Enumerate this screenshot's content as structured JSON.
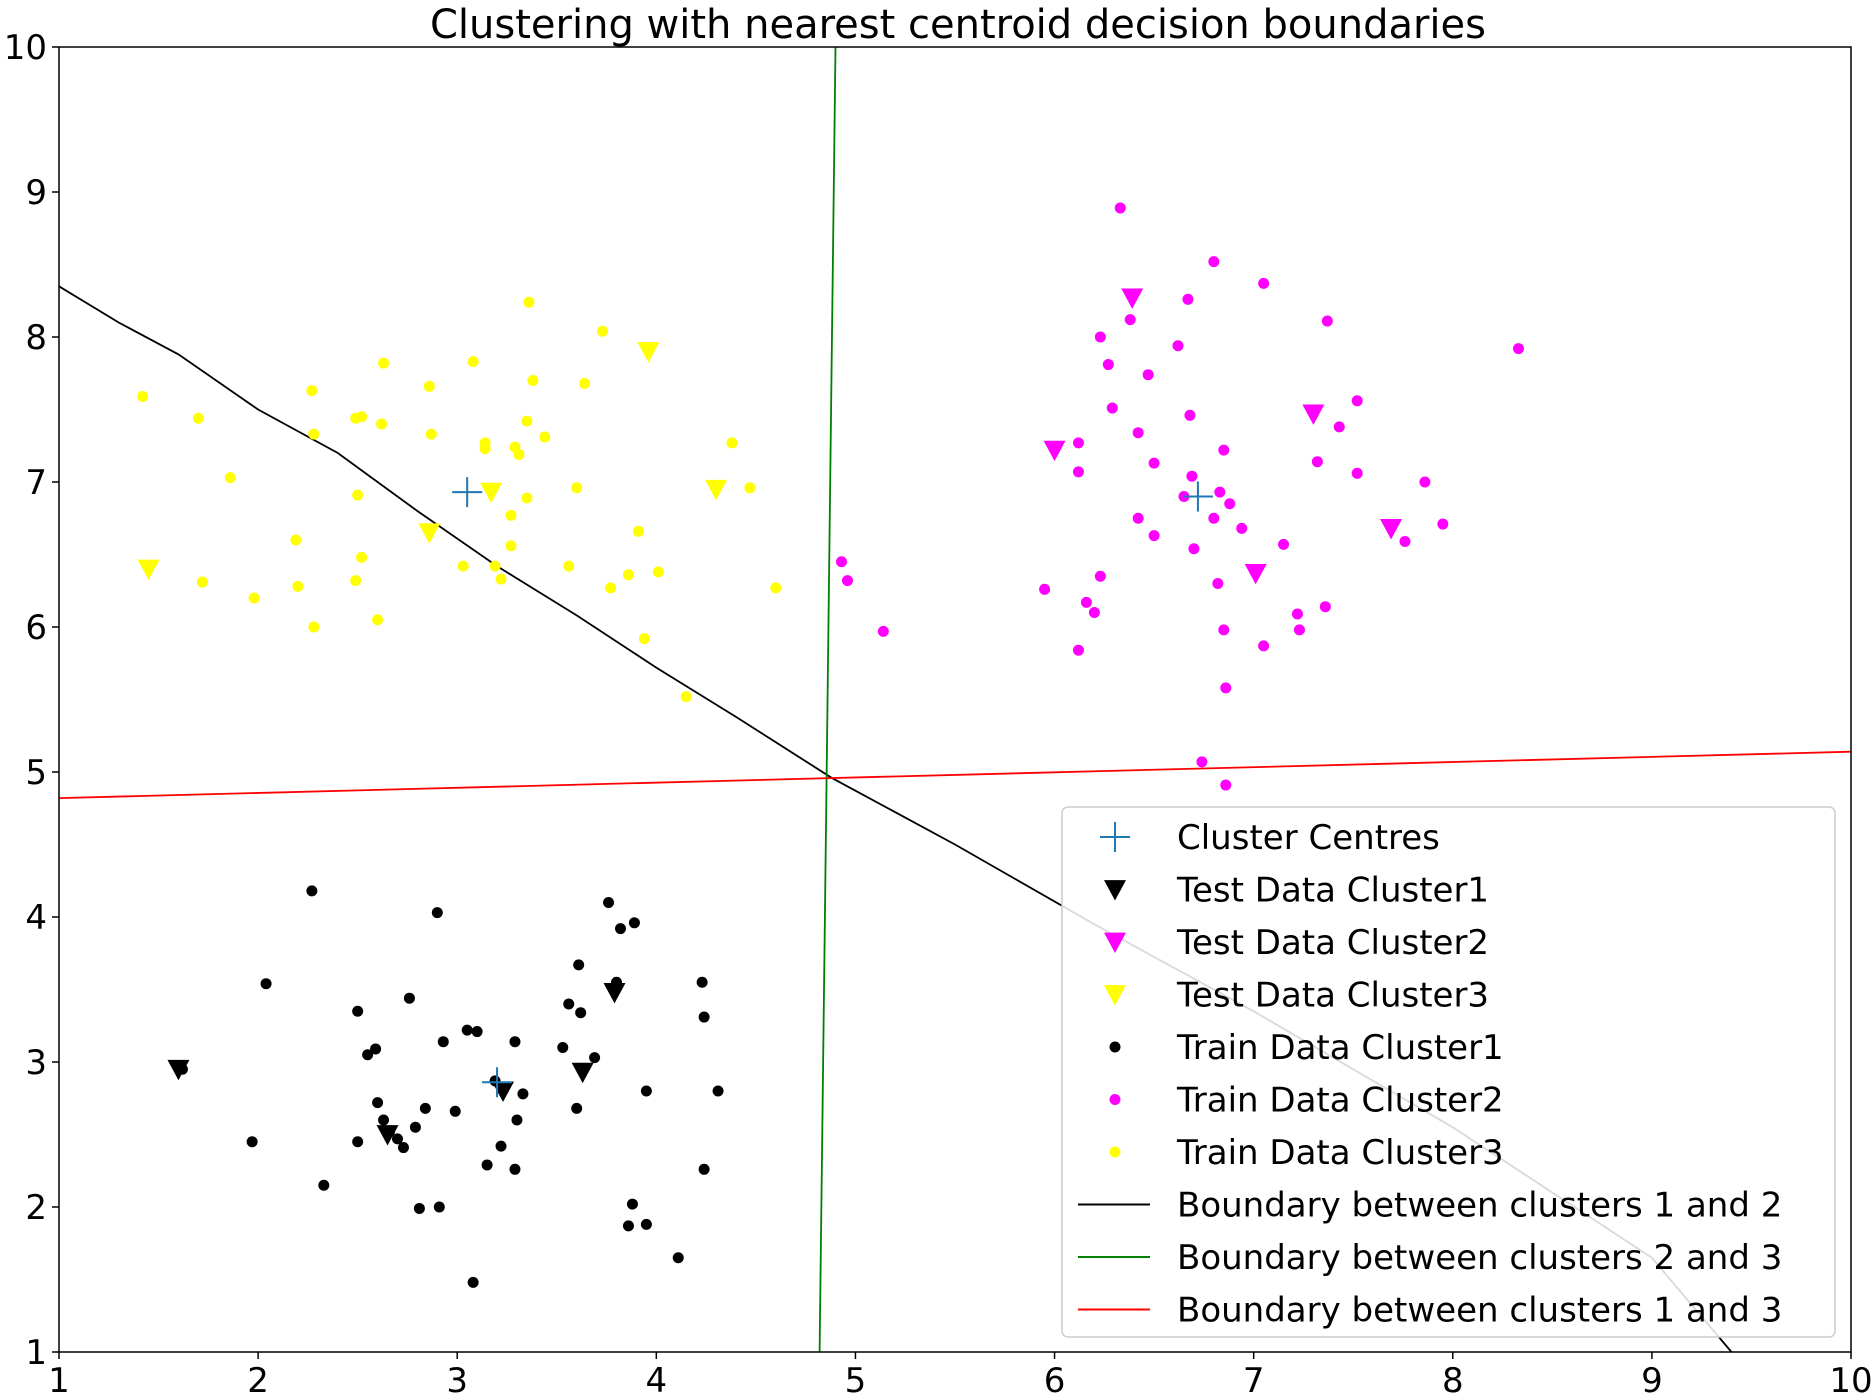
{
  "chart_data": {
    "type": "scatter",
    "title": "Clustering with nearest centroid decision boundaries",
    "xlabel": "",
    "ylabel": "",
    "xlim": [
      1,
      10
    ],
    "ylim": [
      1,
      10
    ],
    "xticks": [
      "1",
      "2",
      "3",
      "4",
      "5",
      "6",
      "7",
      "8",
      "9",
      "10"
    ],
    "yticks": [
      "1",
      "2",
      "3",
      "4",
      "5",
      "6",
      "7",
      "8",
      "9",
      "10"
    ],
    "grid": false,
    "legend_position": "bottom-right",
    "series": [
      {
        "name": "Cluster Centres",
        "kind": "plus",
        "color": "#1f77b4",
        "points": [
          [
            3.05,
            6.93
          ],
          [
            6.72,
            6.9
          ],
          [
            3.2,
            2.86
          ]
        ]
      },
      {
        "name": "Test Data Cluster1",
        "kind": "triangle",
        "color": "#000000",
        "points": [
          [
            1.6,
            2.95
          ],
          [
            2.65,
            2.5
          ],
          [
            3.23,
            2.8
          ],
          [
            3.63,
            2.93
          ],
          [
            3.79,
            3.48
          ]
        ]
      },
      {
        "name": "Test Data Cluster2",
        "kind": "triangle",
        "color": "#ff00ff",
        "points": [
          [
            6.39,
            8.27
          ],
          [
            6.0,
            7.22
          ],
          [
            7.3,
            7.47
          ],
          [
            7.01,
            6.37
          ],
          [
            7.69,
            6.68
          ]
        ]
      },
      {
        "name": "Test Data Cluster3",
        "kind": "triangle",
        "color": "#ffff00",
        "points": [
          [
            1.45,
            6.4
          ],
          [
            2.86,
            6.65
          ],
          [
            3.17,
            6.93
          ],
          [
            3.96,
            7.9
          ],
          [
            4.3,
            6.95
          ]
        ]
      },
      {
        "name": "Train Data Cluster1",
        "kind": "dot",
        "color": "#000000",
        "points": [
          [
            1.62,
            2.95
          ],
          [
            1.97,
            2.45
          ],
          [
            2.04,
            3.54
          ],
          [
            2.27,
            4.18
          ],
          [
            2.33,
            2.15
          ],
          [
            2.5,
            3.35
          ],
          [
            2.5,
            2.45
          ],
          [
            2.55,
            3.05
          ],
          [
            2.59,
            3.09
          ],
          [
            2.6,
            2.72
          ],
          [
            2.63,
            2.6
          ],
          [
            2.66,
            2.52
          ],
          [
            2.7,
            2.47
          ],
          [
            2.73,
            2.41
          ],
          [
            2.76,
            3.44
          ],
          [
            2.79,
            2.55
          ],
          [
            2.81,
            1.99
          ],
          [
            2.84,
            2.68
          ],
          [
            2.9,
            4.03
          ],
          [
            2.91,
            2.0
          ],
          [
            2.93,
            3.14
          ],
          [
            2.99,
            2.66
          ],
          [
            3.05,
            3.22
          ],
          [
            3.08,
            1.48
          ],
          [
            3.1,
            3.21
          ],
          [
            3.15,
            2.29
          ],
          [
            3.19,
            2.87
          ],
          [
            3.22,
            2.42
          ],
          [
            3.29,
            3.14
          ],
          [
            3.29,
            2.26
          ],
          [
            3.3,
            2.6
          ],
          [
            3.33,
            2.78
          ],
          [
            3.53,
            3.1
          ],
          [
            3.56,
            3.4
          ],
          [
            3.61,
            3.67
          ],
          [
            3.62,
            3.34
          ],
          [
            3.6,
            2.68
          ],
          [
            3.69,
            3.03
          ],
          [
            3.76,
            4.1
          ],
          [
            3.8,
            3.55
          ],
          [
            3.82,
            3.92
          ],
          [
            3.86,
            1.87
          ],
          [
            3.88,
            2.02
          ],
          [
            3.89,
            3.96
          ],
          [
            3.95,
            1.88
          ],
          [
            3.95,
            2.8
          ],
          [
            4.11,
            1.65
          ],
          [
            4.23,
            3.55
          ],
          [
            4.24,
            3.31
          ],
          [
            4.24,
            2.26
          ],
          [
            4.31,
            2.8
          ]
        ]
      },
      {
        "name": "Train Data Cluster2",
        "kind": "dot",
        "color": "#ff00ff",
        "points": [
          [
            4.93,
            6.45
          ],
          [
            4.96,
            6.32
          ],
          [
            5.14,
            5.97
          ],
          [
            5.95,
            6.26
          ],
          [
            6.12,
            5.84
          ],
          [
            6.12,
            7.27
          ],
          [
            6.12,
            7.07
          ],
          [
            6.16,
            6.17
          ],
          [
            6.2,
            6.1
          ],
          [
            6.23,
            8.0
          ],
          [
            6.27,
            7.81
          ],
          [
            6.29,
            7.51
          ],
          [
            6.33,
            8.89
          ],
          [
            6.38,
            8.12
          ],
          [
            6.23,
            6.35
          ],
          [
            6.42,
            7.34
          ],
          [
            6.42,
            6.75
          ],
          [
            6.47,
            7.74
          ],
          [
            6.5,
            7.13
          ],
          [
            6.5,
            6.63
          ],
          [
            6.62,
            7.94
          ],
          [
            6.65,
            6.9
          ],
          [
            6.67,
            8.26
          ],
          [
            6.68,
            7.46
          ],
          [
            6.69,
            7.04
          ],
          [
            6.7,
            6.54
          ],
          [
            6.74,
            5.07
          ],
          [
            6.8,
            8.52
          ],
          [
            6.8,
            6.75
          ],
          [
            6.82,
            6.3
          ],
          [
            6.83,
            6.93
          ],
          [
            6.85,
            7.22
          ],
          [
            6.85,
            5.98
          ],
          [
            6.86,
            5.58
          ],
          [
            6.86,
            4.91
          ],
          [
            6.88,
            6.85
          ],
          [
            6.94,
            6.68
          ],
          [
            7.05,
            8.37
          ],
          [
            7.05,
            5.87
          ],
          [
            7.15,
            6.57
          ],
          [
            7.22,
            6.09
          ],
          [
            7.23,
            5.98
          ],
          [
            7.32,
            7.14
          ],
          [
            7.36,
            6.14
          ],
          [
            7.37,
            8.11
          ],
          [
            7.43,
            7.38
          ],
          [
            7.52,
            7.56
          ],
          [
            7.52,
            7.06
          ],
          [
            7.76,
            6.59
          ],
          [
            7.86,
            7.0
          ],
          [
            7.95,
            6.71
          ],
          [
            8.33,
            7.92
          ]
        ]
      },
      {
        "name": "Train Data Cluster3",
        "kind": "dot",
        "color": "#ffff00",
        "points": [
          [
            1.42,
            7.59
          ],
          [
            1.7,
            7.44
          ],
          [
            1.72,
            6.31
          ],
          [
            1.86,
            7.03
          ],
          [
            1.98,
            6.2
          ],
          [
            2.19,
            6.6
          ],
          [
            2.2,
            6.28
          ],
          [
            2.27,
            7.63
          ],
          [
            2.28,
            7.33
          ],
          [
            2.28,
            6.0
          ],
          [
            2.49,
            6.32
          ],
          [
            2.49,
            7.44
          ],
          [
            2.5,
            6.91
          ],
          [
            2.52,
            7.45
          ],
          [
            2.52,
            6.48
          ],
          [
            2.6,
            6.05
          ],
          [
            2.62,
            7.4
          ],
          [
            2.63,
            7.82
          ],
          [
            2.86,
            7.66
          ],
          [
            2.87,
            7.33
          ],
          [
            3.03,
            6.42
          ],
          [
            3.08,
            7.83
          ],
          [
            3.14,
            7.27
          ],
          [
            3.14,
            7.23
          ],
          [
            3.19,
            6.42
          ],
          [
            3.22,
            6.33
          ],
          [
            3.27,
            6.77
          ],
          [
            3.27,
            6.56
          ],
          [
            3.29,
            7.24
          ],
          [
            3.31,
            7.19
          ],
          [
            3.35,
            7.42
          ],
          [
            3.35,
            6.89
          ],
          [
            3.36,
            8.24
          ],
          [
            3.38,
            7.7
          ],
          [
            3.44,
            7.31
          ],
          [
            3.56,
            6.42
          ],
          [
            3.6,
            6.96
          ],
          [
            3.64,
            7.68
          ],
          [
            3.73,
            8.04
          ],
          [
            3.77,
            6.27
          ],
          [
            3.86,
            6.36
          ],
          [
            3.91,
            6.66
          ],
          [
            3.94,
            5.92
          ],
          [
            4.01,
            6.38
          ],
          [
            4.15,
            5.52
          ],
          [
            4.38,
            7.27
          ],
          [
            4.47,
            6.96
          ],
          [
            4.6,
            6.27
          ]
        ]
      },
      {
        "name": "Boundary between clusters 1 and 2",
        "kind": "line",
        "color": "#000000",
        "points": [
          [
            1.0,
            8.35
          ],
          [
            1.3,
            8.1
          ],
          [
            1.6,
            7.88
          ],
          [
            2.0,
            7.5
          ],
          [
            2.4,
            7.2
          ],
          [
            2.8,
            6.8
          ],
          [
            3.2,
            6.42
          ],
          [
            3.6,
            6.08
          ],
          [
            4.0,
            5.72
          ],
          [
            4.4,
            5.38
          ],
          [
            4.88,
            4.96
          ],
          [
            5.5,
            4.5
          ],
          [
            6.2,
            3.95
          ],
          [
            7.0,
            3.35
          ],
          [
            8.0,
            2.55
          ],
          [
            9.0,
            1.65
          ],
          [
            9.4,
            1.0
          ]
        ]
      },
      {
        "name": "Boundary between clusters 2 and 3",
        "kind": "line",
        "color": "#008000",
        "points": [
          [
            4.82,
            1.0
          ],
          [
            4.9,
            10.0
          ]
        ]
      },
      {
        "name": "Boundary between clusters 1 and 3",
        "kind": "line",
        "color": "#ff0000",
        "points": [
          [
            1.0,
            4.82
          ],
          [
            10.0,
            5.14
          ]
        ]
      }
    ]
  }
}
